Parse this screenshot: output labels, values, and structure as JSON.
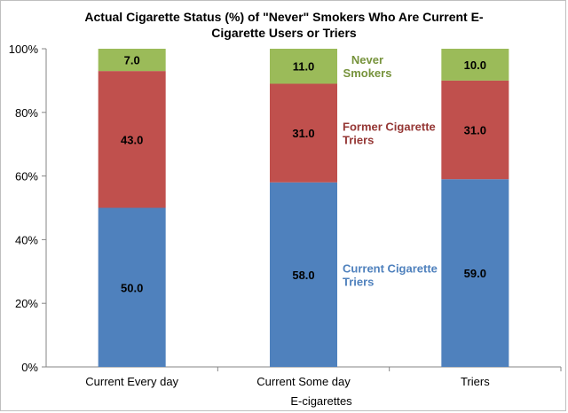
{
  "chart_data": {
    "type": "bar",
    "stacked": true,
    "title_line1": "Actual Cigarette Status (%) of \"Never\" Smokers Who Are Current E-",
    "title_line2": "Cigarette Users or Triers",
    "xlabel": "E-cigarettes",
    "ylabel": "",
    "ylim": [
      0,
      100
    ],
    "yticks": [
      "0%",
      "20%",
      "40%",
      "60%",
      "80%",
      "100%"
    ],
    "categories": [
      "Current Every day",
      "Current Some day",
      "Triers"
    ],
    "series": [
      {
        "name": "Current Cigarette Triers",
        "legend_lines": [
          "Current Cigarette",
          "Triers"
        ],
        "color": "#4f81bd",
        "values": [
          50.0,
          58.0,
          59.0
        ]
      },
      {
        "name": "Former Cigarette Triers",
        "legend_lines": [
          "Former Cigarette",
          "Triers"
        ],
        "color": "#c0504d",
        "legend_color": "#953735",
        "values": [
          43.0,
          31.0,
          31.0
        ]
      },
      {
        "name": "Never Smokers",
        "legend_lines": [
          "Never",
          "Smokers"
        ],
        "color": "#9bbb59",
        "legend_color": "#77933c",
        "values": [
          7.0,
          11.0,
          10.0
        ]
      }
    ],
    "grid": false,
    "legend_placement": "inline-right-of-middle-bar"
  }
}
